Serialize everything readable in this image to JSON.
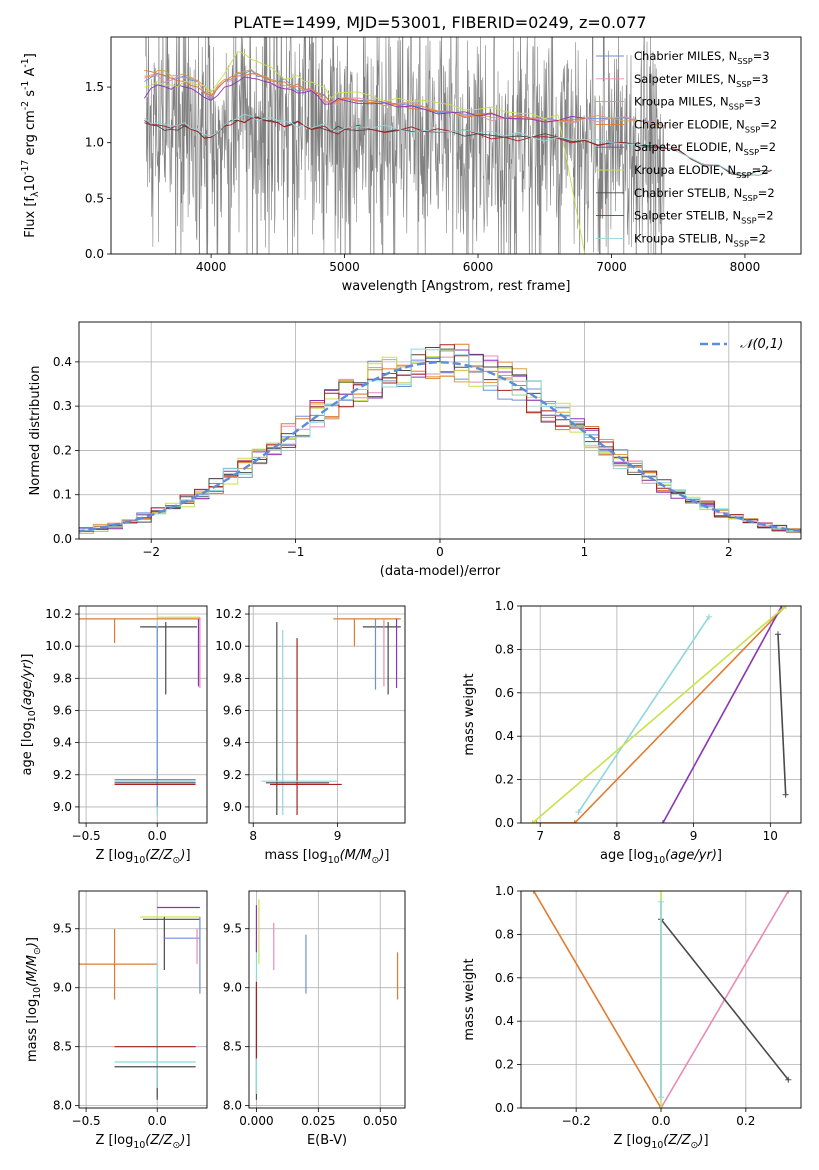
{
  "title": "PLATE=1499, MJD=53001, FIBERID=0249, z=0.077",
  "colors": {
    "grid": "#b0b0b0",
    "data_spectrum": "#808080",
    "gauss": "#5b8ddb"
  },
  "chart_data": [
    {
      "id": "spectrum",
      "type": "line",
      "xlabel": "wavelength [Angstrom, rest frame]",
      "ylabel": "Flux [f$_\\lambda$10$^{-17}$ erg cm$^{-2}$ s$^{-1}$ A$^{-1}$]",
      "xlim": [
        3250,
        8420
      ],
      "ylim": [
        0,
        1.95
      ],
      "xticks": [
        4000,
        5000,
        6000,
        7000,
        8000
      ],
      "yticks": [
        0.0,
        0.5,
        1.0,
        1.5
      ],
      "grid": false,
      "legend_position": "upper-right",
      "series": [
        {
          "name": "Chabrier MILES, N$_{SSP}$=3",
          "color": "#6f8fd9",
          "x": [
            3500,
            3600,
            3700,
            3800,
            3900,
            4000,
            4100,
            4200,
            4300,
            4400,
            4500,
            4600,
            4700,
            4800,
            4900,
            5000,
            5200,
            5400,
            5600,
            5800,
            6000,
            6200,
            6400,
            6600,
            6800,
            7000,
            7200,
            7400
          ],
          "y": [
            1.55,
            1.62,
            1.58,
            1.6,
            1.55,
            1.38,
            1.55,
            1.62,
            1.65,
            1.6,
            1.55,
            1.52,
            1.48,
            1.45,
            1.35,
            1.4,
            1.38,
            1.35,
            1.32,
            1.28,
            1.26,
            1.22,
            1.22,
            1.2,
            1.22,
            1.22,
            1.2,
            1.15
          ]
        },
        {
          "name": "Salpeter MILES, N$_{SSP}$=3",
          "color": "#e88bb8",
          "x": [
            3500,
            3600,
            3700,
            3800,
            3900,
            4000,
            4100,
            4200,
            4300,
            4400,
            4500,
            4600,
            4700,
            4800,
            4900,
            5000,
            5200,
            5400,
            5600,
            5800,
            6000,
            6200,
            6400,
            6600,
            6800,
            7000,
            7200,
            7400
          ],
          "y": [
            1.58,
            1.6,
            1.56,
            1.58,
            1.55,
            1.4,
            1.55,
            1.6,
            1.62,
            1.58,
            1.52,
            1.5,
            1.47,
            1.44,
            1.36,
            1.4,
            1.38,
            1.35,
            1.32,
            1.28,
            1.25,
            1.22,
            1.22,
            1.2,
            1.22,
            1.22,
            1.2,
            1.15
          ]
        },
        {
          "name": "Kroupa MILES, N$_{SSP}$=3",
          "color": "#d8a24a",
          "x": [
            3500,
            3600,
            3700,
            3800,
            3900,
            4000,
            4100,
            4200,
            4300,
            4400,
            4500,
            4600,
            4700,
            4800,
            4900,
            5000,
            5200,
            5400,
            5600,
            5800,
            6000,
            6200,
            6400,
            6600,
            6800,
            7000,
            7200,
            7400
          ],
          "y": [
            1.6,
            1.65,
            1.6,
            1.62,
            1.56,
            1.42,
            1.57,
            1.63,
            1.66,
            1.6,
            1.55,
            1.52,
            1.48,
            1.45,
            1.37,
            1.41,
            1.38,
            1.35,
            1.32,
            1.28,
            1.26,
            1.22,
            1.22,
            1.2,
            1.22,
            1.22,
            1.2,
            1.15
          ]
        },
        {
          "name": "Chabrier ELODIE, N$_{SSP}$=2",
          "color": "#e07b2e",
          "x": [
            3500,
            3600,
            3700,
            3800,
            3900,
            4000,
            4100,
            4200,
            4300,
            4400,
            4500,
            4600,
            4700,
            4800,
            4900,
            5000,
            5200,
            5400,
            5600,
            5800,
            6000,
            6200,
            6400,
            6600,
            6800
          ],
          "y": [
            1.65,
            1.62,
            1.58,
            1.55,
            1.5,
            1.42,
            1.55,
            1.6,
            1.62,
            1.58,
            1.55,
            1.5,
            1.48,
            1.44,
            1.36,
            1.4,
            1.36,
            1.34,
            1.3,
            1.28,
            1.25,
            1.22,
            1.22,
            1.2,
            1.22
          ]
        },
        {
          "name": "Salpeter ELODIE, N$_{SSP}$=2",
          "color": "#8a35b8",
          "x": [
            3500,
            3600,
            3700,
            3800,
            3900,
            4000,
            4100,
            4200,
            4300,
            4400,
            4500,
            4600,
            4700,
            4800,
            4900,
            5000,
            5200,
            5400,
            5600,
            5800,
            6000,
            6200,
            6400,
            6600,
            6800
          ],
          "y": [
            1.4,
            1.52,
            1.48,
            1.5,
            1.45,
            1.38,
            1.5,
            1.55,
            1.58,
            1.55,
            1.5,
            1.48,
            1.45,
            1.42,
            1.35,
            1.38,
            1.35,
            1.32,
            1.3,
            1.27,
            1.24,
            1.22,
            1.21,
            1.2,
            1.22
          ]
        },
        {
          "name": "Kroupa ELODIE, N$_{SSP}$=2",
          "color": "#c8e24a",
          "x": [
            3500,
            3600,
            3700,
            3800,
            3900,
            4000,
            4100,
            4200,
            4300,
            4400,
            4500,
            4600,
            4700,
            4800,
            4900,
            5000,
            5200,
            5400,
            5600,
            5800,
            6000,
            6200,
            6400,
            6600,
            6800
          ],
          "y": [
            1.5,
            1.55,
            1.52,
            1.55,
            1.52,
            1.45,
            1.62,
            1.82,
            1.75,
            1.7,
            1.62,
            1.58,
            1.55,
            1.52,
            1.4,
            1.45,
            1.42,
            1.4,
            1.38,
            1.34,
            1.3,
            1.28,
            1.26,
            1.25,
            0.0
          ]
        },
        {
          "name": "Chabrier STELIB, N$_{SSP}$=2",
          "color": "#4a4a4a",
          "x": [
            3500,
            3600,
            3700,
            3800,
            3900,
            4000,
            4100,
            4200,
            4300,
            4400,
            4500,
            4600,
            4700,
            4800,
            4900,
            5000,
            5200,
            5400,
            5600,
            5800,
            6000,
            6200,
            6400,
            6600,
            6800,
            7000,
            7200,
            7400,
            7600,
            7800,
            8000,
            8200
          ],
          "y": [
            1.18,
            1.15,
            1.12,
            1.15,
            1.1,
            1.05,
            1.15,
            1.2,
            1.22,
            1.2,
            1.18,
            1.17,
            1.15,
            1.14,
            1.1,
            1.12,
            1.12,
            1.12,
            1.1,
            1.1,
            1.08,
            1.05,
            1.05,
            1.05,
            1.02,
            1.0,
            0.98,
            0.95,
            0.85,
            0.8,
            0.7,
            0.75
          ]
        },
        {
          "name": "Salpeter STELIB, N$_{SSP}$=2",
          "color": "#a82020",
          "x": [
            3500,
            3600,
            3700,
            3800,
            3900,
            4000,
            4100,
            4200,
            4300,
            4400,
            4500,
            4600,
            4700,
            4800,
            4900,
            5000,
            5200,
            5400,
            5600,
            5800,
            6000,
            6200,
            6400,
            6600,
            6800,
            7000,
            7200,
            7400,
            7600,
            7800,
            8000,
            8200
          ],
          "y": [
            1.2,
            1.16,
            1.13,
            1.16,
            1.1,
            1.05,
            1.15,
            1.2,
            1.22,
            1.2,
            1.18,
            1.16,
            1.15,
            1.13,
            1.1,
            1.12,
            1.12,
            1.11,
            1.1,
            1.1,
            1.08,
            1.05,
            1.05,
            1.04,
            1.02,
            1.0,
            0.98,
            0.95,
            0.85,
            0.8,
            0.72,
            0.75
          ]
        },
        {
          "name": "Kroupa STELIB, N$_{SSP}$=2",
          "color": "#8fd6dc",
          "x": [
            3500,
            3600,
            3700,
            3800,
            3900,
            4000,
            4100,
            4200,
            4300,
            4400,
            4500,
            4600,
            4700,
            4800,
            4900,
            5000,
            5200,
            5400,
            5600,
            5800,
            6000,
            6200,
            6400,
            6600,
            6800,
            7000,
            7200,
            7400,
            7600,
            7800,
            8000,
            8200
          ],
          "y": [
            1.22,
            1.18,
            1.15,
            1.18,
            1.12,
            1.06,
            1.16,
            1.22,
            1.24,
            1.22,
            1.2,
            1.18,
            1.16,
            1.15,
            1.12,
            1.13,
            1.13,
            1.12,
            1.11,
            1.1,
            1.09,
            1.06,
            1.05,
            1.05,
            1.03,
            1.0,
            0.98,
            0.96,
            0.86,
            0.8,
            0.72,
            0.76
          ]
        }
      ]
    },
    {
      "id": "residuals",
      "type": "line",
      "xlabel": "(data-model)/error",
      "ylabel": "Normed distribution",
      "xlim": [
        -2.5,
        2.5
      ],
      "ylim": [
        0,
        0.49
      ],
      "xticks": [
        -2,
        -1,
        0,
        1,
        2
      ],
      "yticks": [
        0.0,
        0.1,
        0.2,
        0.3,
        0.4
      ],
      "grid": true,
      "legend_position": "upper-right",
      "gaussian": {
        "label": "$\\mathcal{N}(0,1)$",
        "mean": 0,
        "sigma": 1
      }
    },
    {
      "id": "age-vs-Z",
      "type": "scatter",
      "xlabel": "Z [log$_{10}(Z/Z_\\odot)$]",
      "ylabel": "age  [log$_{10}(age/yr)$]",
      "xlim": [
        -0.55,
        0.35
      ],
      "ylim": [
        8.9,
        10.25
      ],
      "xticks": [
        -0.5,
        0.0
      ],
      "yticks": [
        9.0,
        9.2,
        9.4,
        9.6,
        9.8,
        10.0,
        10.2
      ],
      "grid": true
    },
    {
      "id": "age-vs-mass",
      "type": "scatter",
      "xlabel": "mass [log$_{10}(M/M_\\odot)$]",
      "ylabel": "",
      "xlim": [
        7.95,
        9.8
      ],
      "ylim": [
        8.9,
        10.25
      ],
      "xticks": [
        8,
        9
      ],
      "yticks": [
        9.0,
        9.2,
        9.4,
        9.6,
        9.8,
        10.0,
        10.2
      ],
      "grid": true
    },
    {
      "id": "mass-weight-vs-age",
      "type": "line",
      "xlabel": "age  [log$_{10}(age/yr)$]",
      "ylabel": "mass weight",
      "xlim": [
        6.75,
        10.4
      ],
      "ylim": [
        0,
        1.0
      ],
      "xticks": [
        7,
        8,
        9,
        10
      ],
      "yticks": [
        0.0,
        0.2,
        0.4,
        0.6,
        0.8,
        1.0
      ],
      "grid": true
    },
    {
      "id": "mass-vs-Z",
      "type": "scatter",
      "xlabel": "Z [log$_{10}(Z/Z_\\odot)$]",
      "ylabel": "mass [log$_{10}(M/M_\\odot)$]",
      "xlim": [
        -0.55,
        0.35
      ],
      "ylim": [
        7.98,
        9.82
      ],
      "xticks": [
        -0.5,
        0.0
      ],
      "yticks": [
        8.0,
        8.5,
        9.0,
        9.5
      ],
      "grid": true
    },
    {
      "id": "mass-vs-EBV",
      "type": "scatter",
      "xlabel": "E(B-V)",
      "ylabel": "",
      "xlim": [
        -0.003,
        0.06
      ],
      "ylim": [
        7.98,
        9.82
      ],
      "xticks": [
        0.0,
        0.025,
        0.05
      ],
      "yticks": [
        8.0,
        8.5,
        9.0,
        9.5
      ],
      "grid": true
    },
    {
      "id": "mass-weight-vs-Z",
      "type": "line",
      "xlabel": "Z [log$_{10}(Z/Z_\\odot)$]",
      "ylabel": "mass weight",
      "xlim": [
        -0.33,
        0.33
      ],
      "ylim": [
        0,
        1.0
      ],
      "xticks": [
        -0.2,
        0.0,
        0.2
      ],
      "yticks": [
        0.0,
        0.2,
        0.4,
        0.6,
        0.8,
        1.0
      ],
      "grid": true
    }
  ]
}
